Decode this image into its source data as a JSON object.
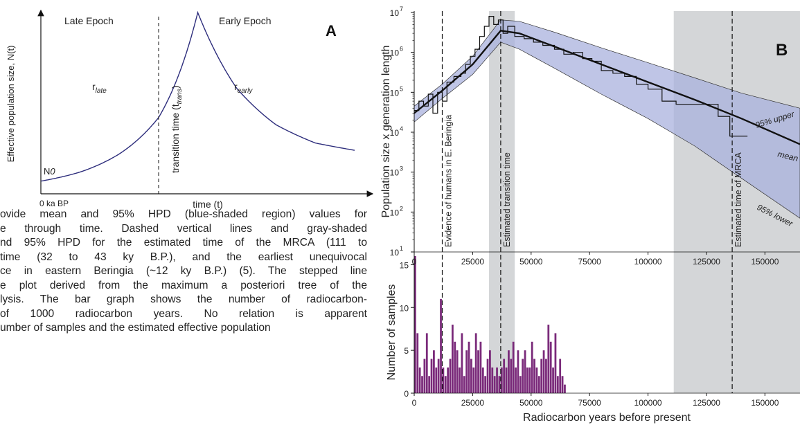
{
  "chart_data": [
    {
      "type": "line",
      "panel_label": "A",
      "xlabel": "time (t)",
      "ylabel": "Effective population size, N(t)",
      "x_origin_label": "0 ka BP",
      "y_origin_label": "N0",
      "regions": [
        "Late Epoch",
        "Early Epoch"
      ],
      "growth_labels": {
        "late": {
          "base": "r",
          "sub": "late"
        },
        "early": {
          "base": "r",
          "sub": "early"
        }
      },
      "transition_label": {
        "text": "transition time (t",
        "sub": "trans",
        "close": ")"
      },
      "curve": {
        "x": [
          0,
          1,
          2,
          3,
          4,
          5,
          6,
          7,
          8
        ],
        "y": [
          0.07,
          0.12,
          0.22,
          0.42,
          1.0,
          0.58,
          0.38,
          0.28,
          0.24
        ]
      }
    },
    {
      "type": "line",
      "panel_label": "B",
      "xlabel": "Radiocarbon years before present",
      "ylabel_top": "Population size x generation length",
      "ylabel_bottom": "Number of samples",
      "y_scale_top": "log",
      "ylim_top": [
        10,
        10000000
      ],
      "yticks_top": [
        "10",
        "10",
        "10",
        "10",
        "10",
        "10",
        "10"
      ],
      "ytick_exponents_top": [
        "1",
        "2",
        "3",
        "4",
        "5",
        "6",
        "7"
      ],
      "xlim": [
        0,
        165000
      ],
      "xticks": [
        "0",
        "25000",
        "50000",
        "75000",
        "100000",
        "125000",
        "150000"
      ],
      "ylim_bottom": [
        0,
        16
      ],
      "yticks_bottom": [
        "0",
        "5",
        "10",
        "15"
      ],
      "shaded_intervals": [
        [
          32000,
          43000
        ],
        [
          111000,
          165000
        ]
      ],
      "vertical_lines": [
        {
          "x": 12000,
          "label": "Evidence of humans in E. Beringia"
        },
        {
          "x": 37000,
          "label": "Estimated transition time"
        },
        {
          "x": 136000,
          "label": "Estimated time of MRCA"
        }
      ],
      "series": [
        {
          "name": "mean",
          "x": [
            0,
            12000,
            25000,
            37000,
            45000,
            60000,
            80000,
            100000,
            120000,
            140000,
            165000
          ],
          "y": [
            30000,
            110000,
            500000,
            3500000,
            3000000,
            1400000,
            500000,
            180000,
            65000,
            22000,
            5000
          ]
        },
        {
          "name": "95% upper",
          "x": [
            0,
            12000,
            25000,
            37000,
            45000,
            60000,
            80000,
            100000,
            120000,
            140000,
            165000
          ],
          "y": [
            45000,
            160000,
            800000,
            6500000,
            6000000,
            3200000,
            1300000,
            550000,
            230000,
            95000,
            40000
          ]
        },
        {
          "name": "95% lower",
          "x": [
            0,
            12000,
            25000,
            37000,
            45000,
            60000,
            80000,
            100000,
            120000,
            140000,
            165000
          ],
          "y": [
            18000,
            70000,
            280000,
            1800000,
            1200000,
            400000,
            90000,
            22000,
            4500,
            700,
            70
          ]
        },
        {
          "name": "",
          "style": "step",
          "x": [
            0,
            2000,
            4000,
            6000,
            8000,
            10000,
            12000,
            14000,
            17000,
            20000,
            22000,
            24000,
            26000,
            28000,
            30000,
            32000,
            34000,
            36000,
            38000,
            40000,
            43000,
            47000,
            51000,
            55000,
            60000,
            64000,
            68000,
            72000,
            76000,
            80000,
            85000,
            90000,
            95000,
            100000,
            106000,
            112000,
            130000,
            135000,
            139000
          ],
          "y": [
            35000,
            60000,
            45000,
            90000,
            30000,
            100000,
            60000,
            180000,
            250000,
            300000,
            500000,
            800000,
            1200000,
            2500000,
            4500000,
            8000000,
            5000000,
            6500000,
            3000000,
            4500000,
            2500000,
            2200000,
            1800000,
            1500000,
            1200000,
            900000,
            1000000,
            700000,
            600000,
            350000,
            300000,
            250000,
            160000,
            120000,
            60000,
            50000,
            25000,
            8000,
            8000
          ]
        }
      ],
      "series_labels": [
        "95% upper",
        "mean",
        "95% lower"
      ],
      "sample_counts": {
        "bin_width": 1000,
        "values": [
          16,
          7,
          3,
          2,
          4,
          7,
          2,
          4,
          5,
          3,
          4,
          11,
          3,
          2,
          3,
          4,
          8,
          6,
          5,
          3,
          7,
          2,
          5,
          6,
          4,
          3,
          7,
          5,
          6,
          3,
          2,
          4,
          5,
          3,
          2,
          3,
          2,
          3,
          4,
          3,
          5,
          4,
          6,
          3,
          5,
          2,
          4,
          5,
          3,
          3,
          6,
          4,
          3,
          2,
          4,
          5,
          4,
          8,
          6,
          3,
          7,
          2,
          4,
          2,
          1
        ]
      }
    }
  ],
  "caption": {
    "lines": [
      "ovide mean and 95% HPD (blue-shaded region) values for",
      "e through time. Dashed vertical lines and gray-shaded",
      "nd 95% HPD for the estimated time of the MRCA (111 to",
      " time (32 to 43 ky B.P.), and the earliest unequivocal",
      "ce in eastern Beringia (~12 ky B.P.) (5). The stepped line",
      "e plot derived from the maximum a posteriori tree of the",
      "lysis. The bar graph shows the number of radiocarbon-",
      " of 1000 radiocarbon years. No relation is apparent",
      "umber of samples and the estimated effective population"
    ]
  }
}
